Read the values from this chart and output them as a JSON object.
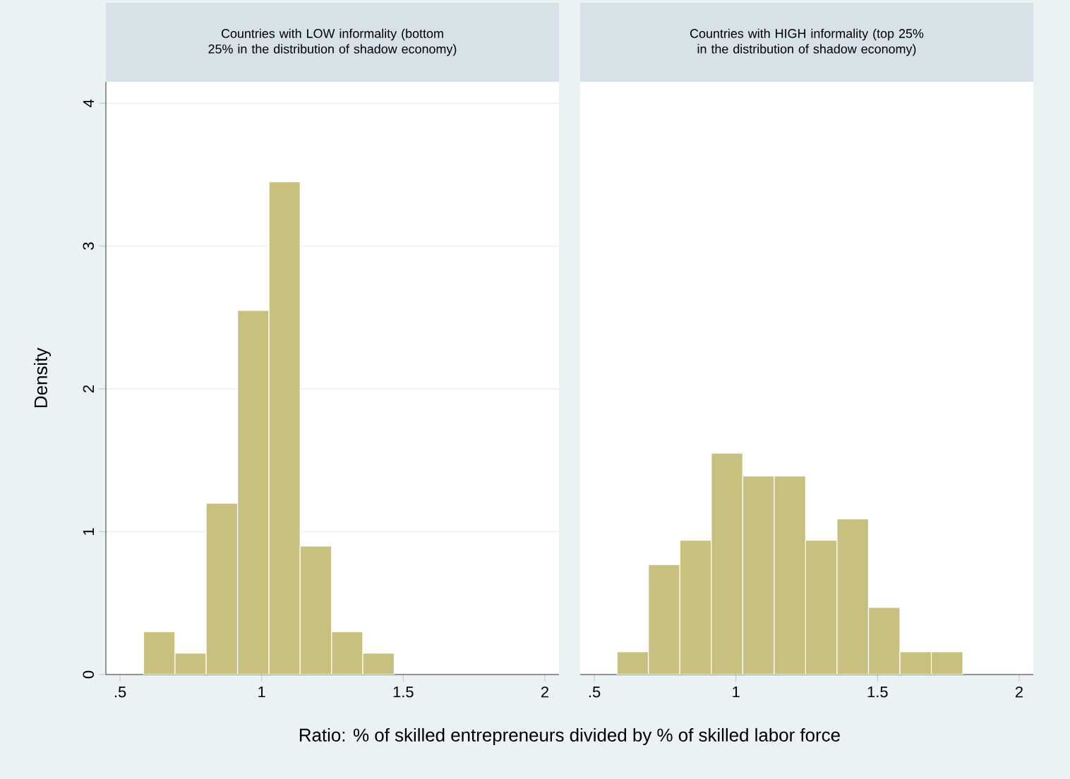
{
  "chart_data": [
    {
      "type": "histogram",
      "title": "Countries with LOW informality (bottom 25% in the distribution of shadow economy)",
      "ylabel": "Density",
      "xlabel": "Ratio: % of skilled entrepreneurs divided by % of skilled labor force",
      "bins": [
        0.583,
        0.694,
        0.804,
        0.915,
        1.026,
        1.136,
        1.247,
        1.357,
        1.468
      ],
      "values": [
        0.3,
        0.15,
        1.2,
        2.55,
        3.45,
        0.9,
        0.3,
        0.15
      ],
      "color": "#c8c07e",
      "xlim": [
        0.45,
        2.05
      ],
      "ylim": [
        0,
        4.15
      ],
      "xticks": [
        {
          "value": 0.5,
          "label": ".5"
        },
        1,
        1.5,
        2
      ],
      "yticks": [
        0,
        1,
        2,
        3,
        4
      ],
      "grid": "y"
    },
    {
      "type": "histogram",
      "title": "Countries with HIGH informality (top 25% in the distribution of shadow economy)",
      "bins": [
        0.58,
        0.691,
        0.802,
        0.913,
        1.024,
        1.135,
        1.246,
        1.357,
        1.468,
        1.579,
        1.69,
        1.801
      ],
      "values": [
        0.16,
        0.77,
        0.94,
        1.55,
        1.39,
        1.39,
        0.94,
        1.09,
        0.47,
        0.16,
        0.16
      ],
      "color": "#c8c07e",
      "xlim": [
        0.45,
        2.05
      ],
      "ylim": [
        0,
        4.15
      ],
      "xticks": [
        {
          "value": 0.5,
          "label": ".5"
        },
        1,
        1.5,
        2
      ],
      "yticks": [
        0,
        1,
        2,
        3,
        4
      ],
      "grid": "y",
      "tick_labels": "x"
    }
  ]
}
